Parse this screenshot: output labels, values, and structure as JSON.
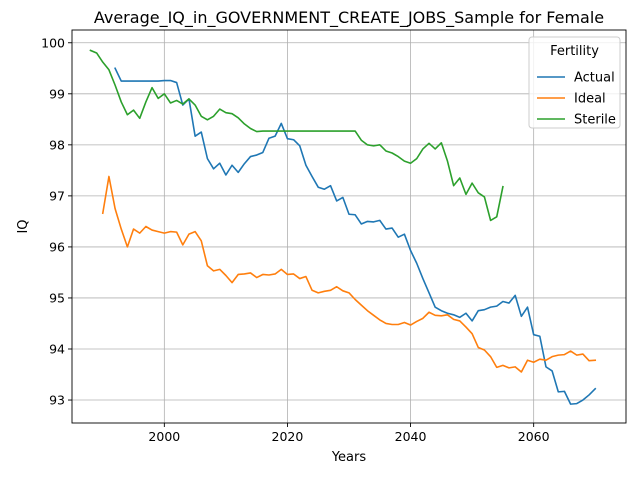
{
  "chart_data": {
    "type": "line",
    "title": "Average_IQ_in_GOVERNMENT_CREATE_JOBS_Sample for Female",
    "xlabel": "Years",
    "ylabel": "IQ",
    "xlim": [
      1985,
      2075
    ],
    "ylim": [
      92.55,
      100.25
    ],
    "xticks": [
      2000,
      2020,
      2040,
      2060
    ],
    "yticks": [
      93,
      94,
      95,
      96,
      97,
      98,
      99,
      100
    ],
    "grid": true,
    "legend": {
      "title": "Fertility",
      "placement": "top-right"
    },
    "series": [
      {
        "name": "Actual",
        "color": "#1f77b4",
        "x": [
          1992,
          1993,
          1994,
          1995,
          1996,
          1997,
          1998,
          1999,
          2000,
          2001,
          2002,
          2003,
          2004,
          2005,
          2006,
          2007,
          2008,
          2009,
          2010,
          2011,
          2012,
          2013,
          2014,
          2015,
          2016,
          2017,
          2018,
          2019,
          2020,
          2021,
          2022,
          2023,
          2024,
          2025,
          2026,
          2027,
          2028,
          2029,
          2030,
          2031,
          2032,
          2033,
          2034,
          2035,
          2036,
          2037,
          2038,
          2039,
          2040,
          2041,
          2042,
          2043,
          2044,
          2045,
          2046,
          2047,
          2048,
          2049,
          2050,
          2051,
          2052,
          2053,
          2054,
          2055,
          2056,
          2057,
          2058,
          2059,
          2060,
          2061,
          2062,
          2063,
          2064,
          2065,
          2066,
          2067,
          2068,
          2069,
          2070
        ],
        "y": [
          99.5,
          99.25,
          99.25,
          99.25,
          99.25,
          99.25,
          99.25,
          99.25,
          99.26,
          99.26,
          99.22,
          98.78,
          98.9,
          98.17,
          98.25,
          97.73,
          97.53,
          97.64,
          97.41,
          97.6,
          97.46,
          97.63,
          97.77,
          97.8,
          97.85,
          98.13,
          98.17,
          98.42,
          98.12,
          98.1,
          97.98,
          97.6,
          97.38,
          97.17,
          97.13,
          97.2,
          96.9,
          96.97,
          96.64,
          96.63,
          96.45,
          96.5,
          96.49,
          96.52,
          96.35,
          96.37,
          96.19,
          96.25,
          95.93,
          95.68,
          95.38,
          95.1,
          94.82,
          94.75,
          94.7,
          94.67,
          94.62,
          94.7,
          94.55,
          94.75,
          94.77,
          94.82,
          94.84,
          94.93,
          94.9,
          95.05,
          94.64,
          94.82,
          94.28,
          94.25,
          93.65,
          93.57,
          93.16,
          93.17,
          92.92,
          92.93,
          93.0,
          93.1,
          93.22
        ]
      },
      {
        "name": "Ideal",
        "color": "#ff7f0e",
        "x": [
          1990,
          1991,
          1992,
          1993,
          1994,
          1995,
          1996,
          1997,
          1998,
          1999,
          2000,
          2001,
          2002,
          2003,
          2004,
          2005,
          2006,
          2007,
          2008,
          2009,
          2010,
          2011,
          2012,
          2013,
          2014,
          2015,
          2016,
          2017,
          2018,
          2019,
          2020,
          2021,
          2022,
          2023,
          2024,
          2025,
          2026,
          2027,
          2028,
          2029,
          2030,
          2031,
          2032,
          2033,
          2034,
          2035,
          2036,
          2037,
          2038,
          2039,
          2040,
          2041,
          2042,
          2043,
          2044,
          2045,
          2046,
          2047,
          2048,
          2049,
          2050,
          2051,
          2052,
          2053,
          2054,
          2055,
          2056,
          2057,
          2058,
          2059,
          2060,
          2061,
          2062,
          2063,
          2064,
          2065,
          2066,
          2067,
          2068,
          2069,
          2070
        ],
        "y": [
          96.66,
          97.38,
          96.75,
          96.35,
          96.0,
          96.35,
          96.27,
          96.4,
          96.33,
          96.3,
          96.27,
          96.3,
          96.29,
          96.04,
          96.25,
          96.3,
          96.12,
          95.63,
          95.53,
          95.56,
          95.44,
          95.3,
          95.46,
          95.47,
          95.49,
          95.4,
          95.46,
          95.45,
          95.47,
          95.56,
          95.46,
          95.47,
          95.38,
          95.42,
          95.15,
          95.1,
          95.13,
          95.15,
          95.22,
          95.14,
          95.1,
          94.97,
          94.86,
          94.75,
          94.66,
          94.57,
          94.5,
          94.48,
          94.48,
          94.52,
          94.47,
          94.54,
          94.6,
          94.72,
          94.66,
          94.65,
          94.67,
          94.58,
          94.55,
          94.43,
          94.3,
          94.03,
          93.98,
          93.85,
          93.64,
          93.68,
          93.63,
          93.65,
          93.55,
          93.78,
          93.74,
          93.8,
          93.78,
          93.85,
          93.88,
          93.89,
          93.96,
          93.88,
          93.9,
          93.77,
          93.78
        ]
      },
      {
        "name": "Sterile",
        "color": "#2ca02c",
        "x": [
          1988,
          1989,
          1990,
          1991,
          1992,
          1993,
          1994,
          1995,
          1996,
          1997,
          1998,
          1999,
          2000,
          2001,
          2002,
          2003,
          2004,
          2005,
          2006,
          2007,
          2008,
          2009,
          2010,
          2011,
          2012,
          2013,
          2014,
          2015,
          2016,
          2017,
          2018,
          2019,
          2020,
          2021,
          2022,
          2023,
          2024,
          2025,
          2026,
          2027,
          2028,
          2029,
          2030,
          2031,
          2032,
          2033,
          2034,
          2035,
          2036,
          2037,
          2038,
          2039,
          2040,
          2041,
          2042,
          2043,
          2044,
          2045,
          2046,
          2047,
          2048,
          2049,
          2050,
          2051,
          2052,
          2053,
          2054,
          2055
        ],
        "y": [
          99.85,
          99.8,
          99.62,
          99.47,
          99.17,
          98.84,
          98.59,
          98.68,
          98.52,
          98.84,
          99.12,
          98.91,
          99.0,
          98.82,
          98.87,
          98.8,
          98.9,
          98.78,
          98.56,
          98.49,
          98.56,
          98.7,
          98.63,
          98.61,
          98.53,
          98.41,
          98.32,
          98.26,
          98.27,
          98.27,
          98.27,
          98.27,
          98.27,
          98.27,
          98.27,
          98.27,
          98.27,
          98.27,
          98.27,
          98.27,
          98.27,
          98.27,
          98.27,
          98.27,
          98.09,
          98.0,
          97.98,
          98.0,
          97.88,
          97.84,
          97.77,
          97.68,
          97.64,
          97.73,
          97.92,
          98.03,
          97.92,
          98.04,
          97.68,
          97.2,
          97.35,
          97.03,
          97.25,
          97.06,
          96.98,
          96.52,
          96.59,
          97.18
        ]
      }
    ]
  }
}
